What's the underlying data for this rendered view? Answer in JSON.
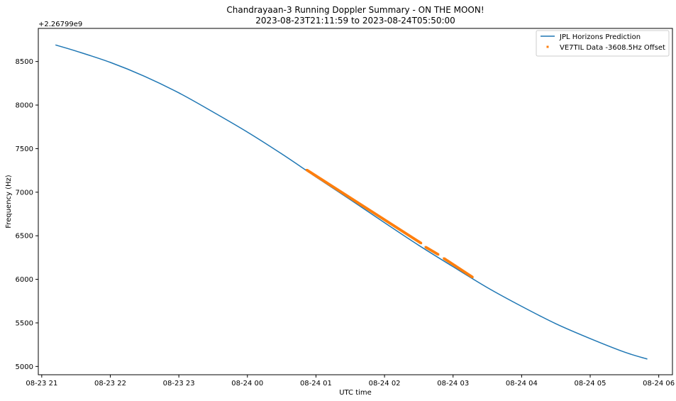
{
  "chart_data": {
    "type": "line",
    "title_line1": "Chandrayaan-3 Running Doppler Summary - ON THE MOON!",
    "title_line2": "2023-08-23T21:11:59 to 2023-08-24T05:50:00",
    "xlabel": "UTC time",
    "ylabel": "Frequency (Hz)",
    "y_offset_label": "+2.26799e9",
    "xlim": [
      "2023-08-23T20:57:00",
      "2023-08-24T06:12:00"
    ],
    "ylim": [
      4905,
      8880
    ],
    "x_ticks": [
      {
        "t": "2023-08-23T21:00:00",
        "label": "08-23 21"
      },
      {
        "t": "2023-08-23T22:00:00",
        "label": "08-23 22"
      },
      {
        "t": "2023-08-23T23:00:00",
        "label": "08-23 23"
      },
      {
        "t": "2023-08-24T00:00:00",
        "label": "08-24 00"
      },
      {
        "t": "2023-08-24T01:00:00",
        "label": "08-24 01"
      },
      {
        "t": "2023-08-24T02:00:00",
        "label": "08-24 02"
      },
      {
        "t": "2023-08-24T03:00:00",
        "label": "08-24 03"
      },
      {
        "t": "2023-08-24T04:00:00",
        "label": "08-24 04"
      },
      {
        "t": "2023-08-24T05:00:00",
        "label": "08-24 05"
      },
      {
        "t": "2023-08-24T06:00:00",
        "label": "08-24 06"
      }
    ],
    "y_ticks": [
      {
        "v": 5000,
        "label": "5000"
      },
      {
        "v": 5500,
        "label": "5500"
      },
      {
        "v": 6000,
        "label": "6000"
      },
      {
        "v": 6500,
        "label": "6500"
      },
      {
        "v": 7000,
        "label": "7000"
      },
      {
        "v": 7500,
        "label": "7500"
      },
      {
        "v": 8000,
        "label": "8000"
      },
      {
        "v": 8500,
        "label": "8500"
      }
    ],
    "grid": false,
    "legend_position": "top-right",
    "series": [
      {
        "name": "JPL Horizons Prediction",
        "kind": "line",
        "color": "#1f77b4",
        "x": [
          "2023-08-23T21:12:00",
          "2023-08-23T21:30:00",
          "2023-08-23T22:00:00",
          "2023-08-23T22:30:00",
          "2023-08-23T23:00:00",
          "2023-08-23T23:30:00",
          "2023-08-24T00:00:00",
          "2023-08-24T00:30:00",
          "2023-08-24T01:00:00",
          "2023-08-24T01:30:00",
          "2023-08-24T02:00:00",
          "2023-08-24T02:30:00",
          "2023-08-24T03:00:00",
          "2023-08-24T03:30:00",
          "2023-08-24T04:00:00",
          "2023-08-24T04:30:00",
          "2023-08-24T05:00:00",
          "2023-08-24T05:30:00",
          "2023-08-24T05:50:00"
        ],
        "y": [
          8690,
          8620,
          8490,
          8330,
          8140,
          7920,
          7690,
          7440,
          7175,
          6915,
          6650,
          6390,
          6145,
          5905,
          5690,
          5490,
          5320,
          5165,
          5085
        ]
      },
      {
        "name": "VE7TIL Data -3608.5Hz Offset",
        "kind": "scatter",
        "color": "#ff7f0e",
        "segments": [
          {
            "start": "2023-08-24T00:52:00",
            "end": "2023-08-24T02:32:00",
            "y_start": 7255,
            "y_end": 6415
          },
          {
            "start": "2023-08-24T02:36:00",
            "end": "2023-08-24T02:47:00",
            "y_start": 6370,
            "y_end": 6285
          },
          {
            "start": "2023-08-24T02:52:00",
            "end": "2023-08-24T03:17:00",
            "y_start": 6240,
            "y_end": 6025
          }
        ]
      }
    ]
  }
}
